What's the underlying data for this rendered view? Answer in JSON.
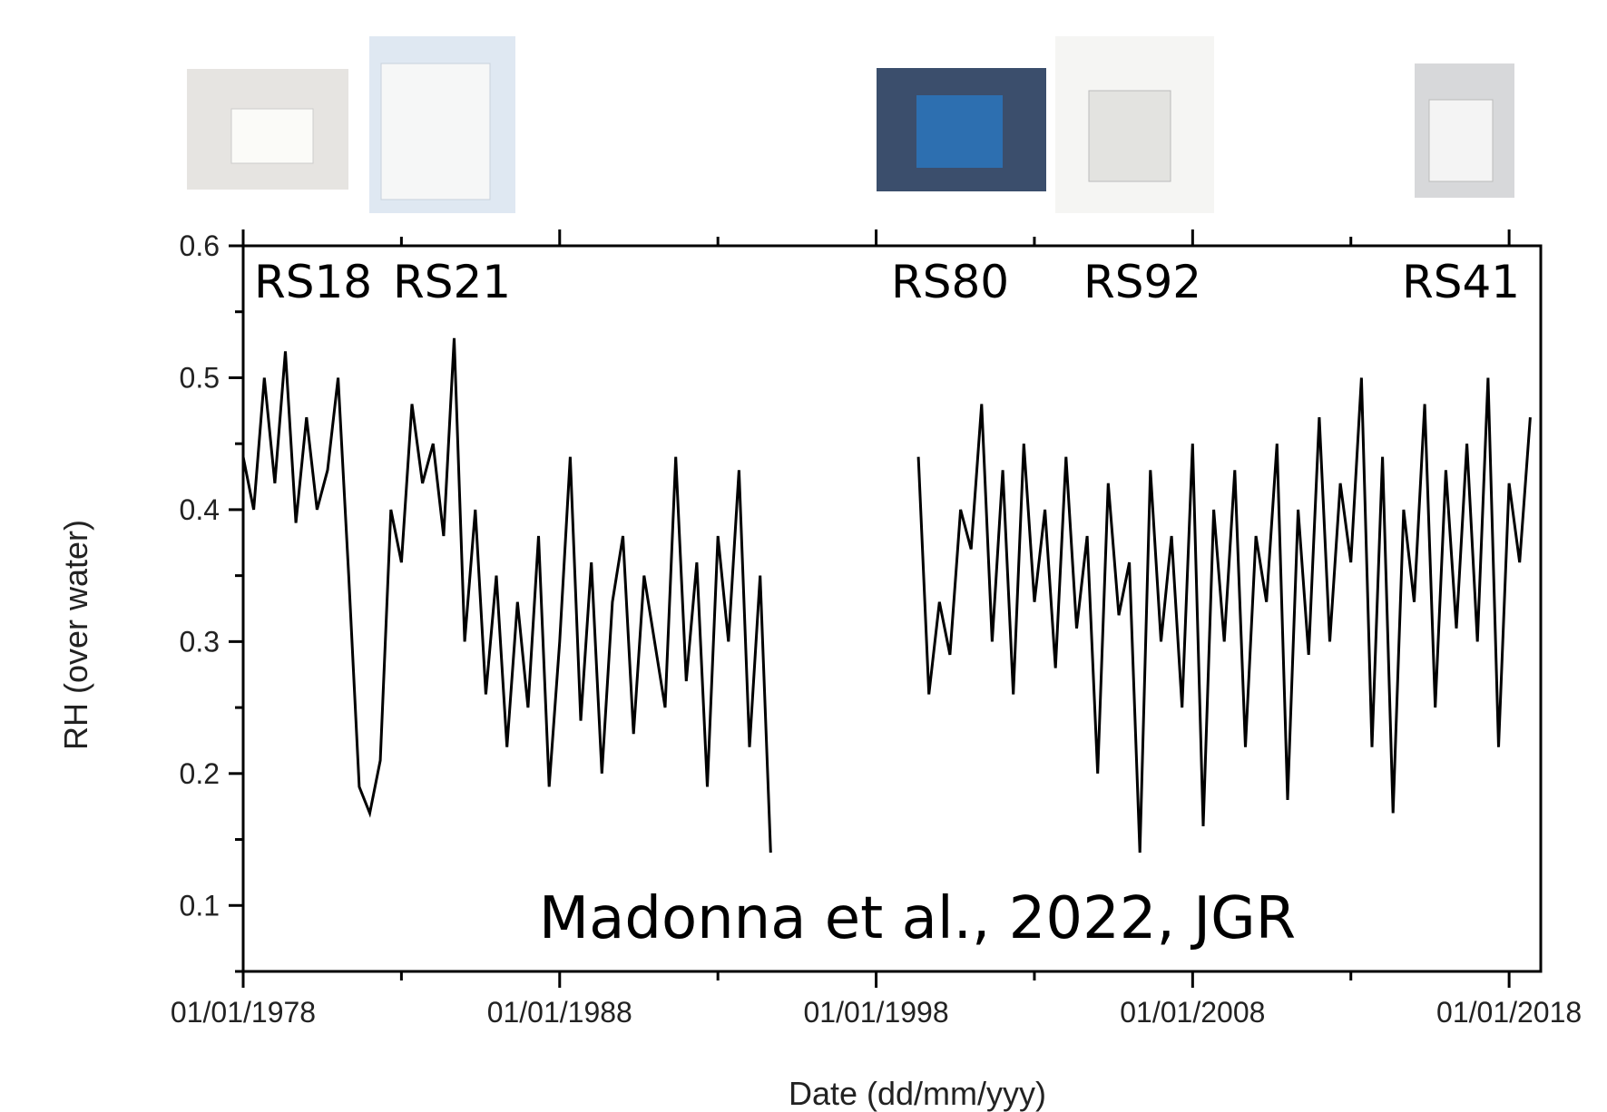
{
  "chart_data": {
    "type": "line",
    "x_label": "Date (dd/mm/yyy)",
    "y_label": "RH (over water)",
    "annotations": [
      "RS18",
      "RS21",
      "RS80",
      "RS92",
      "RS41",
      "Madonna et al., 2022, JGR"
    ],
    "xlim": [
      "01/01/1978",
      "01/01/2019"
    ],
    "xticks": [
      "01/01/1978",
      "01/01/1988",
      "01/01/1998",
      "01/01/2008",
      "01/01/2018"
    ],
    "x_minor_ticks": [
      "01/01/1983",
      "01/01/1993",
      "01/01/2003",
      "01/01/2013"
    ],
    "ylim": [
      0.05,
      0.6
    ],
    "yticks": [
      0.1,
      0.2,
      0.3,
      0.4,
      0.5,
      0.6
    ],
    "y_minor_ticks": [
      0.05,
      0.15,
      0.25,
      0.35,
      0.45,
      0.55
    ],
    "color": "#000000",
    "x": [
      "01/01/1978",
      "01/05/1978",
      "01/09/1978",
      "01/01/1979",
      "01/05/1979",
      "01/09/1979",
      "01/01/1980",
      "01/05/1980",
      "01/09/1980",
      "01/01/1981",
      "01/05/1981",
      "01/09/1981",
      "01/01/1982",
      "01/05/1982",
      "01/09/1982",
      "01/01/1983",
      "01/05/1983",
      "01/09/1983",
      "01/01/1984",
      "01/05/1984",
      "01/09/1984",
      "01/01/1985",
      "01/05/1985",
      "01/09/1985",
      "01/01/1986",
      "01/05/1986",
      "01/09/1986",
      "01/01/1987",
      "01/05/1987",
      "01/09/1987",
      "01/01/1988",
      "01/05/1988",
      "01/09/1988",
      "01/01/1989",
      "01/05/1989",
      "01/09/1989",
      "01/01/1990",
      "01/05/1990",
      "01/09/1990",
      "01/01/1991",
      "01/05/1991",
      "01/09/1991",
      "01/01/1992",
      "01/05/1992",
      "01/09/1992",
      "01/01/1993",
      "01/05/1993",
      "01/09/1993",
      "01/01/1994",
      "01/05/1994",
      "01/09/1994",
      "01/01/1997",
      "01/05/1999",
      "01/09/1999",
      "01/01/2000",
      "01/05/2000",
      "01/09/2000",
      "01/01/2001",
      "01/05/2001",
      "01/09/2001",
      "01/01/2002",
      "01/05/2002",
      "01/09/2002",
      "01/01/2003",
      "01/05/2003",
      "01/09/2003",
      "01/01/2004",
      "01/05/2004",
      "01/09/2004",
      "01/01/2005",
      "01/05/2005",
      "01/09/2005",
      "01/01/2006",
      "01/05/2006",
      "01/09/2006",
      "01/01/2007",
      "01/05/2007",
      "01/09/2007",
      "01/01/2008",
      "01/05/2008",
      "01/09/2008",
      "01/01/2009",
      "01/05/2009",
      "01/09/2009",
      "01/01/2010",
      "01/05/2010",
      "01/09/2010",
      "01/01/2011",
      "01/05/2011",
      "01/09/2011",
      "01/01/2012",
      "01/05/2012",
      "01/09/2012",
      "01/01/2013",
      "01/05/2013",
      "01/09/2013",
      "01/01/2014",
      "01/05/2014",
      "01/09/2014",
      "01/01/2015",
      "01/05/2015",
      "01/09/2015",
      "01/01/2016",
      "01/05/2016",
      "01/09/2016",
      "01/01/2017",
      "01/05/2017",
      "01/09/2017",
      "01/01/2018",
      "01/05/2018",
      "01/09/2018"
    ],
    "values": [
      0.44,
      0.4,
      0.5,
      0.42,
      0.52,
      0.39,
      0.47,
      0.4,
      0.43,
      0.5,
      0.35,
      0.19,
      0.17,
      0.21,
      0.4,
      0.36,
      0.48,
      0.42,
      0.45,
      0.38,
      0.53,
      0.3,
      0.4,
      0.26,
      0.35,
      0.22,
      0.33,
      0.25,
      0.38,
      0.19,
      0.3,
      0.44,
      0.24,
      0.36,
      0.2,
      0.33,
      0.38,
      0.23,
      0.35,
      0.3,
      0.25,
      0.44,
      0.27,
      0.36,
      0.19,
      0.38,
      0.3,
      0.43,
      0.22,
      0.35,
      0.14,
      null,
      0.44,
      0.26,
      0.33,
      0.29,
      0.4,
      0.37,
      0.48,
      0.3,
      0.43,
      0.26,
      0.45,
      0.33,
      0.4,
      0.28,
      0.44,
      0.31,
      0.38,
      0.2,
      0.42,
      0.32,
      0.36,
      0.14,
      0.43,
      0.3,
      0.38,
      0.25,
      0.45,
      0.16,
      0.4,
      0.3,
      0.43,
      0.22,
      0.38,
      0.33,
      0.45,
      0.18,
      0.4,
      0.29,
      0.47,
      0.3,
      0.42,
      0.36,
      0.5,
      0.22,
      0.44,
      0.17,
      0.4,
      0.33,
      0.48,
      0.25,
      0.43,
      0.31,
      0.45,
      0.3,
      0.5,
      0.22,
      0.42,
      0.36,
      0.47
    ]
  }
}
